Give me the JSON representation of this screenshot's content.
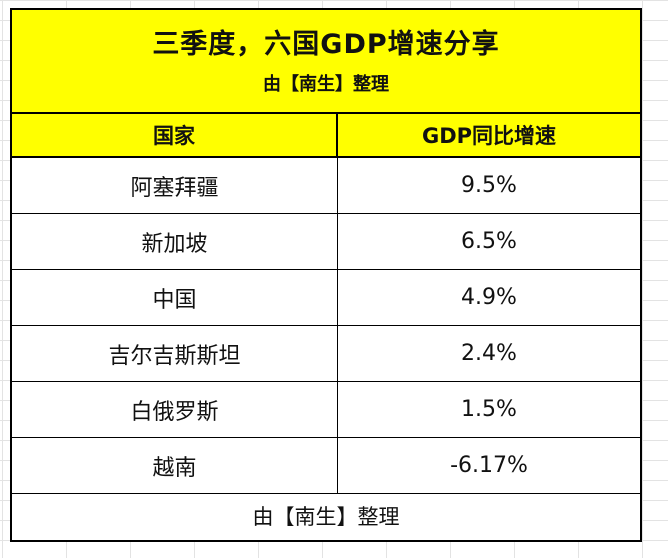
{
  "title": "三季度，六国GDP增速分享",
  "subtitle": "由【南生】整理",
  "columns": [
    "国家",
    "GDP同比增速"
  ],
  "rows": [
    {
      "country": "阿塞拜疆",
      "growth": "9.5%"
    },
    {
      "country": "新加坡",
      "growth": "6.5%"
    },
    {
      "country": "中国",
      "growth": "4.9%"
    },
    {
      "country": "吉尔吉斯斯坦",
      "growth": "2.4%"
    },
    {
      "country": "白俄罗斯",
      "growth": "1.5%"
    },
    {
      "country": "越南",
      "growth": "-6.17%"
    }
  ],
  "footer": "由【南生】整理",
  "colors": {
    "header_background": "#ffff00",
    "border": "#000000",
    "gridline": "#e3e3e3"
  }
}
